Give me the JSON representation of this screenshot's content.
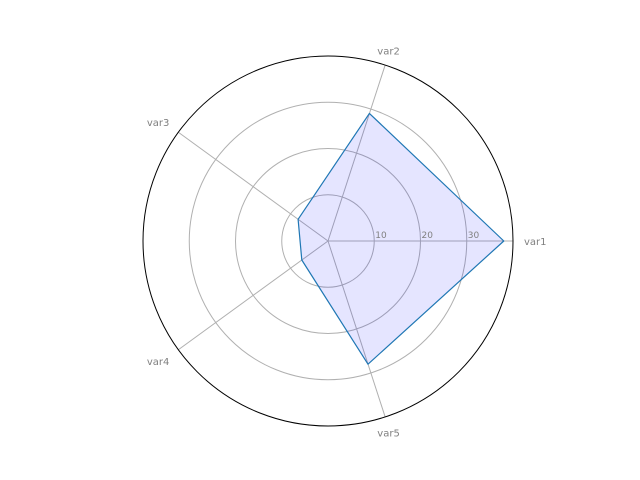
{
  "chart_data": {
    "type": "radar",
    "categories": [
      "var1",
      "var2",
      "var3",
      "var4",
      "var5"
    ],
    "series": [
      {
        "values": [
          38,
          29,
          8,
          7,
          28
        ]
      }
    ],
    "rlim": [
      0,
      40
    ],
    "rticks": [
      10,
      20,
      30
    ],
    "rtick_labels": [
      "10",
      "20",
      "30"
    ],
    "grid": true,
    "colors": {
      "line": "#1f77b4",
      "fill": "#0000ff",
      "grid": "#b0b0b0",
      "frame": "#000000",
      "label": "#808080"
    }
  }
}
